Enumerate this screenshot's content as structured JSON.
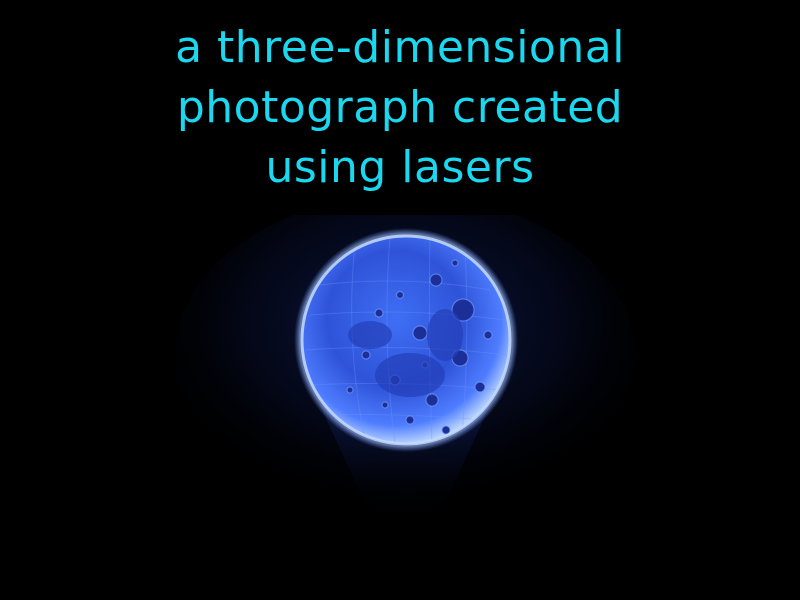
{
  "caption": {
    "lines": [
      "a three-dimensional",
      "photograph created",
      "using lasers"
    ]
  },
  "colors": {
    "background": "#000000",
    "caption_text": "#1ad8f0",
    "hologram_core": "#3a6dff",
    "hologram_rim": "#a8c8ff",
    "hologram_glow": "#1a2f8a"
  },
  "image": {
    "subject": "holographic-moon"
  }
}
